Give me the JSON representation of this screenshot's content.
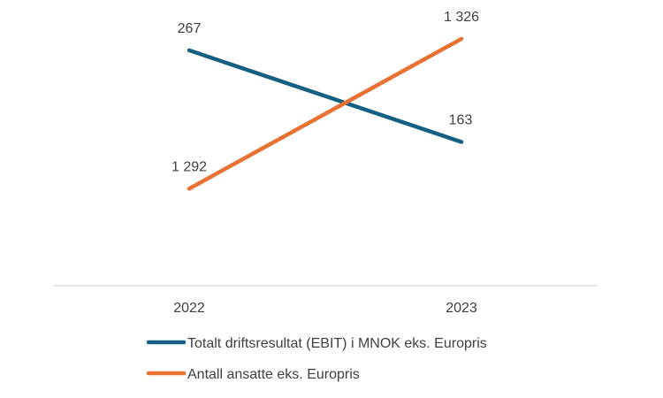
{
  "chart_data": {
    "type": "line",
    "title": "",
    "categories": [
      "2022",
      "2023"
    ],
    "series": [
      {
        "name": "Totalt driftsresultat (EBIT) i MNOK eks. Europris",
        "values": [
          267,
          163
        ],
        "labels": [
          "267",
          "163"
        ],
        "color": "#156082",
        "axis": "primary",
        "ylim": [
          0,
          300
        ]
      },
      {
        "name": "Antall ansatte eks. Europris",
        "values": [
          1292,
          1326
        ],
        "labels": [
          "1 292",
          "1 326"
        ],
        "color": "#E97132",
        "axis": "secondary",
        "ylim": [
          1270,
          1330
        ]
      }
    ],
    "legend": "bottom",
    "grid": false
  }
}
